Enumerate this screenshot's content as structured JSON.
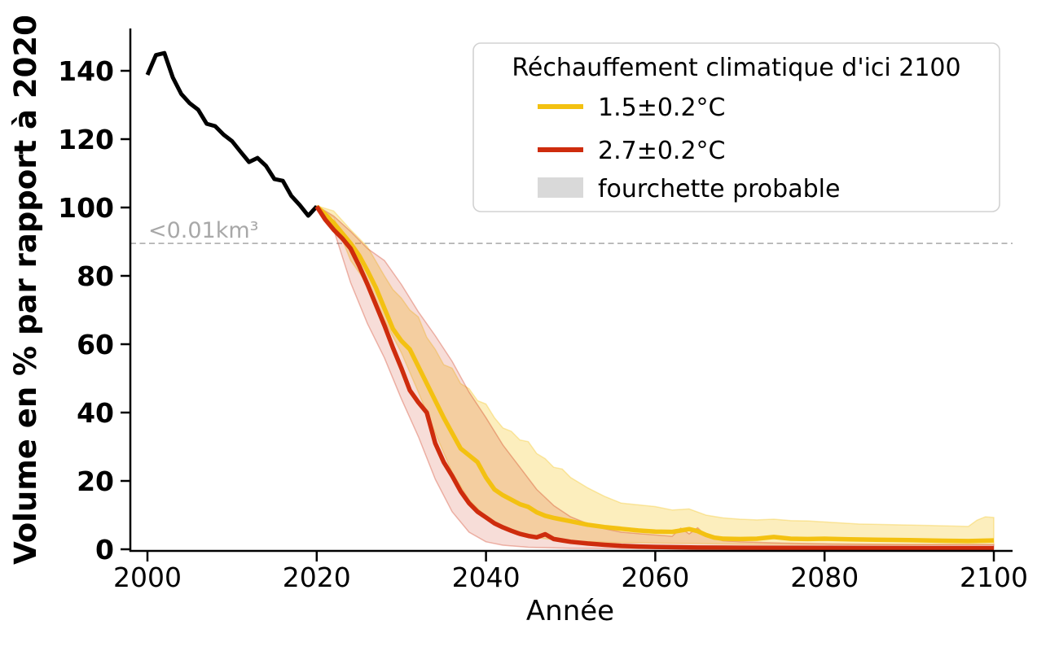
{
  "page": {
    "background": "#ffffff"
  },
  "chart_data": {
    "type": "line",
    "title": "",
    "xlabel": "Année",
    "ylabel": "Volume en % par rapport à 2020",
    "xlim": [
      1998,
      2102.2
    ],
    "ylim": [
      0,
      152.4
    ],
    "x_ticks": [
      2000,
      2020,
      2040,
      2060,
      2080,
      2100
    ],
    "y_ticks": [
      0,
      20,
      40,
      60,
      80,
      100,
      120,
      140
    ],
    "grid": false,
    "threshold": {
      "value": 89.5,
      "label": "<0.01km³",
      "line_color": "#b3b3b3",
      "label_color": "#a8a8a8",
      "style": "dashed"
    },
    "legend": {
      "title": "Réchauffement climatique d'ici 2100",
      "position": "upper right",
      "border_color": "#d2d2d2",
      "entries": [
        {
          "label": "1.5±0.2°C",
          "color": "#F3C111",
          "type": "line"
        },
        {
          "label": "2.7±0.2°C",
          "color": "#CE2C0D",
          "type": "line"
        },
        {
          "label": "fourchette probable",
          "color": "#d9d9d9",
          "type": "patch"
        }
      ]
    },
    "series": [
      {
        "name": "historical_2000_2020",
        "color": "#000000",
        "line_width": 5,
        "points": [
          [
            2000,
            138.8
          ],
          [
            2001,
            144.6
          ],
          [
            2002,
            145.2
          ],
          [
            2003,
            138.0
          ],
          [
            2004,
            133.2
          ],
          [
            2005,
            130.5
          ],
          [
            2006,
            128.6
          ],
          [
            2007,
            124.5
          ],
          [
            2008,
            123.8
          ],
          [
            2009,
            121.3
          ],
          [
            2010,
            119.4
          ],
          [
            2011,
            116.3
          ],
          [
            2012,
            113.3
          ],
          [
            2013,
            114.5
          ],
          [
            2014,
            112.2
          ],
          [
            2015,
            108.3
          ],
          [
            2016,
            107.8
          ],
          [
            2017,
            103.4
          ],
          [
            2018,
            100.7
          ],
          [
            2019,
            97.6
          ],
          [
            2020,
            100.3
          ]
        ]
      },
      {
        "name": "warming_1_5C",
        "color": "#F3C111",
        "line_width": 5.5,
        "band_fill_opacity": 0.28,
        "points": [
          [
            2020,
            100.3
          ],
          [
            2021,
            98
          ],
          [
            2022,
            95.5
          ],
          [
            2023,
            92.5
          ],
          [
            2024,
            89.5
          ],
          [
            2025,
            86
          ],
          [
            2026,
            81.5
          ],
          [
            2027,
            76.5
          ],
          [
            2028,
            70.5
          ],
          [
            2029,
            64.5
          ],
          [
            2030,
            61
          ],
          [
            2031,
            58.5
          ],
          [
            2032,
            53.5
          ],
          [
            2033,
            48.5
          ],
          [
            2034,
            43.5
          ],
          [
            2035,
            38.5
          ],
          [
            2036,
            34
          ],
          [
            2037,
            29.5
          ],
          [
            2038,
            27.5
          ],
          [
            2039,
            25.5
          ],
          [
            2040,
            21
          ],
          [
            2041,
            17.5
          ],
          [
            2042,
            15.8
          ],
          [
            2043,
            14.5
          ],
          [
            2044,
            13.2
          ],
          [
            2045,
            12.4
          ],
          [
            2046,
            10.8
          ],
          [
            2047,
            9.8
          ],
          [
            2048,
            9.2
          ],
          [
            2049,
            8.7
          ],
          [
            2050,
            8.2
          ],
          [
            2052,
            7.2
          ],
          [
            2054,
            6.5
          ],
          [
            2056,
            6
          ],
          [
            2058,
            5.5
          ],
          [
            2060,
            5.2
          ],
          [
            2062,
            5.1
          ],
          [
            2064,
            5.9
          ],
          [
            2065,
            5.3
          ],
          [
            2066,
            4.2
          ],
          [
            2067,
            3.4
          ],
          [
            2068,
            3.1
          ],
          [
            2070,
            3
          ],
          [
            2072,
            3.1
          ],
          [
            2074,
            3.6
          ],
          [
            2076,
            3.1
          ],
          [
            2078,
            3
          ],
          [
            2080,
            3.1
          ],
          [
            2083,
            2.9
          ],
          [
            2086,
            2.8
          ],
          [
            2090,
            2.7
          ],
          [
            2094,
            2.5
          ],
          [
            2097,
            2.4
          ],
          [
            2100,
            2.6
          ]
        ],
        "band_upper": [
          [
            2020,
            100.5
          ],
          [
            2022,
            99
          ],
          [
            2024,
            93.5
          ],
          [
            2026,
            88.5
          ],
          [
            2028,
            80
          ],
          [
            2029,
            76
          ],
          [
            2030,
            73.5
          ],
          [
            2031,
            70
          ],
          [
            2032,
            68
          ],
          [
            2033,
            62
          ],
          [
            2034,
            58.5
          ],
          [
            2035,
            54
          ],
          [
            2036,
            53
          ],
          [
            2037,
            48.5
          ],
          [
            2038,
            47
          ],
          [
            2039,
            43.5
          ],
          [
            2040,
            42.5
          ],
          [
            2041,
            38.5
          ],
          [
            2042,
            35.5
          ],
          [
            2043,
            34.5
          ],
          [
            2044,
            32
          ],
          [
            2045,
            31.5
          ],
          [
            2046,
            28
          ],
          [
            2047,
            26.5
          ],
          [
            2048,
            24
          ],
          [
            2049,
            23.5
          ],
          [
            2050,
            21
          ],
          [
            2052,
            18
          ],
          [
            2054,
            15.5
          ],
          [
            2056,
            13.5
          ],
          [
            2058,
            13
          ],
          [
            2060,
            12.5
          ],
          [
            2062,
            11.5
          ],
          [
            2064,
            11.8
          ],
          [
            2066,
            10
          ],
          [
            2068,
            9.2
          ],
          [
            2070,
            8.8
          ],
          [
            2072,
            8.6
          ],
          [
            2074,
            8.8
          ],
          [
            2076,
            8.4
          ],
          [
            2078,
            8.3
          ],
          [
            2080,
            8
          ],
          [
            2084,
            7.4
          ],
          [
            2088,
            7.2
          ],
          [
            2092,
            7
          ],
          [
            2095,
            6.8
          ],
          [
            2097,
            6.7
          ],
          [
            2098,
            8.5
          ],
          [
            2099,
            9.5
          ],
          [
            2100,
            9.3
          ]
        ],
        "band_lower": [
          [
            2020,
            100
          ],
          [
            2022,
            97
          ],
          [
            2024,
            84.5
          ],
          [
            2026,
            77.5
          ],
          [
            2028,
            67
          ],
          [
            2030,
            57.5
          ],
          [
            2032,
            46
          ],
          [
            2034,
            34
          ],
          [
            2036,
            22.5
          ],
          [
            2038,
            14.5
          ],
          [
            2040,
            9.5
          ],
          [
            2042,
            6.2
          ],
          [
            2044,
            4.5
          ],
          [
            2046,
            3.4
          ],
          [
            2048,
            2.8
          ],
          [
            2050,
            2.4
          ],
          [
            2055,
            2
          ],
          [
            2060,
            1.8
          ],
          [
            2070,
            1.5
          ],
          [
            2080,
            1.4
          ],
          [
            2090,
            1.3
          ],
          [
            2100,
            1.5
          ]
        ]
      },
      {
        "name": "warming_2_7C",
        "color": "#CE2C0D",
        "line_width": 5.5,
        "band_fill_opacity": 0.16,
        "points": [
          [
            2020,
            100.3
          ],
          [
            2021,
            96.5
          ],
          [
            2022,
            93.5
          ],
          [
            2023,
            91
          ],
          [
            2024,
            88
          ],
          [
            2025,
            83
          ],
          [
            2026,
            77.5
          ],
          [
            2027,
            71.5
          ],
          [
            2028,
            65.5
          ],
          [
            2029,
            59
          ],
          [
            2030,
            53
          ],
          [
            2031,
            46.5
          ],
          [
            2032,
            43
          ],
          [
            2033,
            40
          ],
          [
            2034,
            31
          ],
          [
            2035,
            25.5
          ],
          [
            2036,
            21.5
          ],
          [
            2037,
            17
          ],
          [
            2038,
            13.5
          ],
          [
            2039,
            11
          ],
          [
            2040,
            9.3
          ],
          [
            2041,
            7.6
          ],
          [
            2042,
            6.4
          ],
          [
            2043,
            5.4
          ],
          [
            2044,
            4.5
          ],
          [
            2045,
            3.9
          ],
          [
            2046,
            3.5
          ],
          [
            2047,
            4.4
          ],
          [
            2048,
            3
          ],
          [
            2049,
            2.6
          ],
          [
            2050,
            2.2
          ],
          [
            2052,
            1.7
          ],
          [
            2054,
            1.3
          ],
          [
            2056,
            1
          ],
          [
            2058,
            0.8
          ],
          [
            2060,
            0.7
          ],
          [
            2065,
            0.5
          ],
          [
            2070,
            0.45
          ],
          [
            2080,
            0.4
          ],
          [
            2090,
            0.35
          ],
          [
            2100,
            0.35
          ]
        ],
        "band_upper": [
          [
            2020,
            100.5
          ],
          [
            2022,
            97.5
          ],
          [
            2024,
            93
          ],
          [
            2026,
            88
          ],
          [
            2028,
            84.5
          ],
          [
            2030,
            77.5
          ],
          [
            2032,
            69.5
          ],
          [
            2034,
            62.5
          ],
          [
            2036,
            55
          ],
          [
            2038,
            46
          ],
          [
            2040,
            38.5
          ],
          [
            2042,
            30.5
          ],
          [
            2044,
            24
          ],
          [
            2046,
            17.5
          ],
          [
            2048,
            12.8
          ],
          [
            2050,
            9.5
          ],
          [
            2052,
            7.5
          ],
          [
            2054,
            6
          ],
          [
            2056,
            5
          ],
          [
            2058,
            4.6
          ],
          [
            2060,
            4.2
          ],
          [
            2062,
            3.8
          ],
          [
            2063,
            6.2
          ],
          [
            2064,
            4.5
          ],
          [
            2065,
            6.3
          ],
          [
            2066,
            4
          ],
          [
            2068,
            2.5
          ],
          [
            2070,
            2.2
          ],
          [
            2075,
            1.8
          ],
          [
            2080,
            1.6
          ],
          [
            2090,
            1.4
          ],
          [
            2100,
            1.4
          ]
        ],
        "band_lower": [
          [
            2020,
            100
          ],
          [
            2022,
            93.5
          ],
          [
            2024,
            78
          ],
          [
            2026,
            66
          ],
          [
            2028,
            56
          ],
          [
            2030,
            44
          ],
          [
            2032,
            33
          ],
          [
            2034,
            20.5
          ],
          [
            2036,
            11
          ],
          [
            2038,
            5
          ],
          [
            2040,
            2.2
          ],
          [
            2042,
            1.2
          ],
          [
            2045,
            0.6
          ],
          [
            2050,
            0.3
          ],
          [
            2060,
            0.15
          ],
          [
            2080,
            0.1
          ],
          [
            2100,
            0.1
          ]
        ]
      }
    ]
  }
}
